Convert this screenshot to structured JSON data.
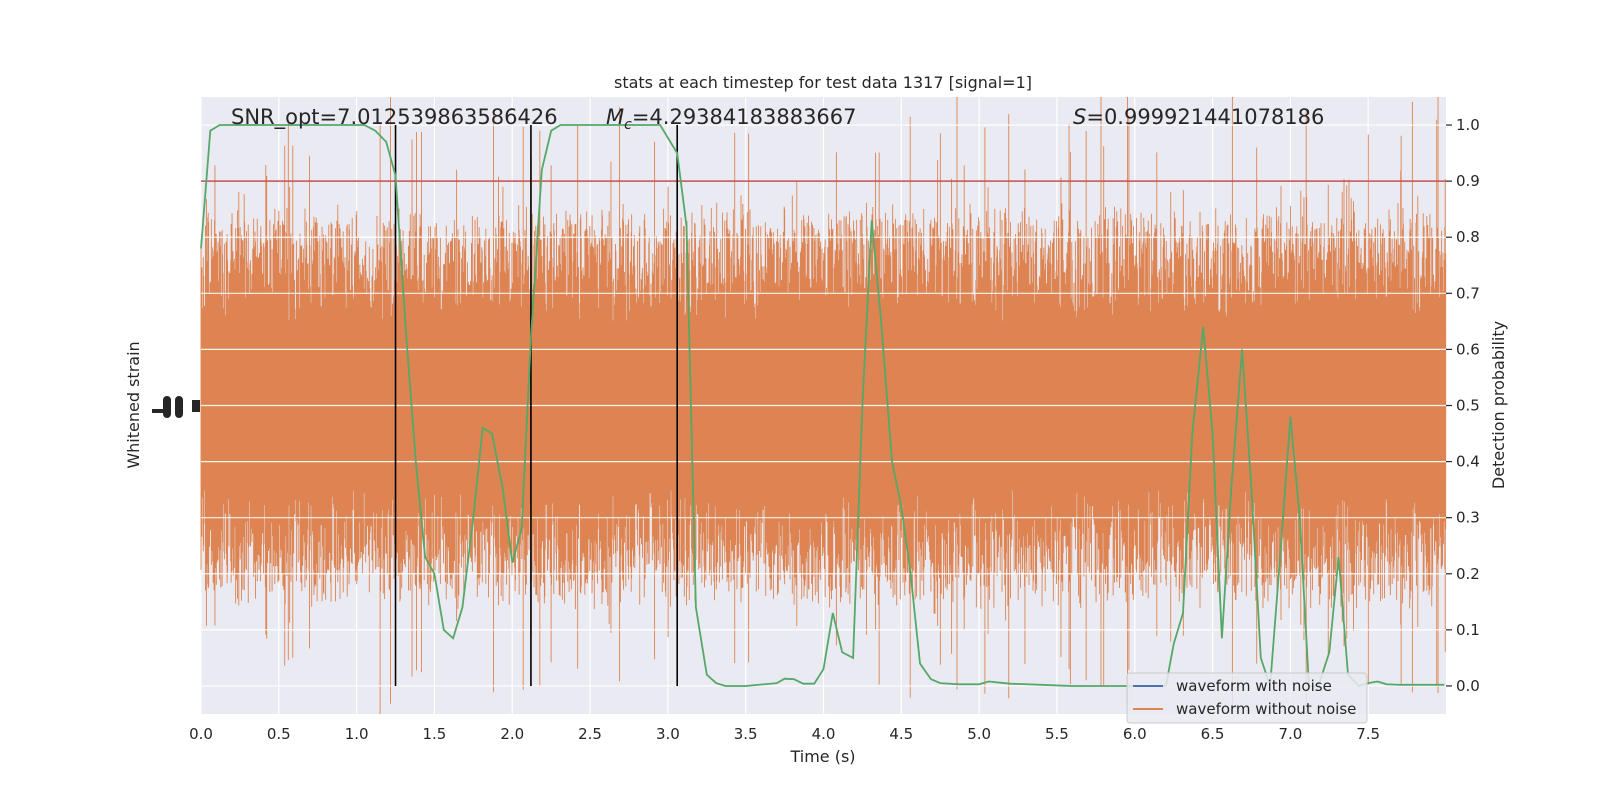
{
  "chart_data": {
    "type": "line",
    "title": "stats at each timestep for test data 1317 [signal=1]",
    "xlabel": "Time (s)",
    "ylabel_left": "Whitened strain",
    "ylabel_right": "Detection probability",
    "xlim": [
      0.0,
      8.0
    ],
    "ylim_right": [
      -0.05,
      1.05
    ],
    "x_ticks": [
      "0.0",
      "0.5",
      "1.0",
      "1.5",
      "2.0",
      "2.5",
      "3.0",
      "3.5",
      "4.0",
      "4.5",
      "5.0",
      "5.5",
      "6.0",
      "6.5",
      "7.0",
      "7.5"
    ],
    "x_tick_values": [
      0,
      0.5,
      1,
      1.5,
      2,
      2.5,
      3,
      3.5,
      4,
      4.5,
      5,
      5.5,
      6,
      6.5,
      7,
      7.5
    ],
    "y_ticks_right": [
      "0.0",
      "0.1",
      "0.2",
      "0.3",
      "0.4",
      "0.5",
      "0.6",
      "0.7",
      "0.8",
      "0.9",
      "1.0"
    ],
    "y_tick_values_right": [
      0,
      0.1,
      0.2,
      0.3,
      0.4,
      0.5,
      0.6,
      0.7,
      0.8,
      0.9,
      1.0
    ],
    "annotations": {
      "snr": "SNR_opt=7.012539863586426",
      "mc_symbol": "M",
      "mc_sub": "c",
      "mc_value": "=4.29384183883667",
      "s_symbol": "S",
      "s_value": "=0.999921441078186"
    },
    "threshold": 0.9,
    "vertical_lines_x": [
      1.25,
      2.12,
      3.06
    ],
    "series": [
      {
        "name": "waveform with noise",
        "color": "#4c72b0",
        "kind": "whitened-strain"
      },
      {
        "name": "waveform without noise",
        "color": "#dd8452",
        "kind": "whitened-strain"
      },
      {
        "color": "#55a868",
        "kind": "detection-probability",
        "x": [
          0.0,
          0.06,
          0.12,
          0.2,
          0.35,
          0.5,
          0.7,
          0.9,
          1.05,
          1.12,
          1.19,
          1.25,
          1.32,
          1.38,
          1.44,
          1.5,
          1.56,
          1.62,
          1.68,
          1.75,
          1.81,
          1.87,
          1.94,
          2.0,
          2.06,
          2.12,
          2.19,
          2.25,
          2.31,
          2.4,
          2.6,
          2.8,
          2.95,
          3.06,
          3.12,
          3.18,
          3.25,
          3.31,
          3.37,
          3.5,
          3.7,
          3.75,
          3.81,
          3.87,
          3.94,
          4.0,
          4.06,
          4.12,
          4.19,
          4.25,
          4.31,
          4.37,
          4.44,
          4.5,
          4.56,
          4.62,
          4.69,
          4.75,
          4.87,
          5.0,
          5.06,
          5.2,
          5.4,
          5.6,
          5.8,
          6.0,
          6.2,
          6.25,
          6.31,
          6.37,
          6.44,
          6.5,
          6.56,
          6.62,
          6.69,
          6.75,
          6.81,
          6.87,
          6.94,
          7.0,
          7.06,
          7.12,
          7.18,
          7.25,
          7.31,
          7.37,
          7.44,
          7.5,
          7.56,
          7.62,
          7.7,
          7.8,
          7.9,
          7.99
        ],
        "values": [
          0.78,
          0.99,
          1.0,
          1.0,
          1.0,
          1.0,
          1.0,
          1.0,
          1.0,
          0.99,
          0.97,
          0.91,
          0.62,
          0.4,
          0.23,
          0.2,
          0.1,
          0.085,
          0.14,
          0.3,
          0.46,
          0.45,
          0.35,
          0.22,
          0.28,
          0.62,
          0.92,
          0.99,
          1.0,
          1.0,
          1.0,
          1.0,
          1.0,
          0.95,
          0.82,
          0.14,
          0.02,
          0.005,
          0.0,
          0.0,
          0.005,
          0.013,
          0.012,
          0.004,
          0.004,
          0.03,
          0.13,
          0.06,
          0.05,
          0.5,
          0.83,
          0.65,
          0.4,
          0.32,
          0.2,
          0.04,
          0.012,
          0.005,
          0.003,
          0.003,
          0.008,
          0.004,
          0.002,
          0.0,
          0.0,
          0.0,
          0.0,
          0.075,
          0.13,
          0.45,
          0.64,
          0.45,
          0.085,
          0.35,
          0.6,
          0.35,
          0.05,
          0.0,
          0.25,
          0.48,
          0.3,
          0.0,
          0.0,
          0.06,
          0.23,
          0.02,
          0.0,
          0.005,
          0.008,
          0.003,
          0.002,
          0.002,
          0.002,
          0.002
        ]
      }
    ],
    "legend": {
      "placement": "lower-right",
      "entries": [
        "waveform with noise",
        "waveform without noise"
      ]
    },
    "grid": true,
    "colors": {
      "background": "#eaeaf2",
      "grid": "#ffffff",
      "threshold": "#c44e52",
      "vlines": "#000000",
      "probability": "#55a868",
      "strain": "#dd8452"
    }
  }
}
